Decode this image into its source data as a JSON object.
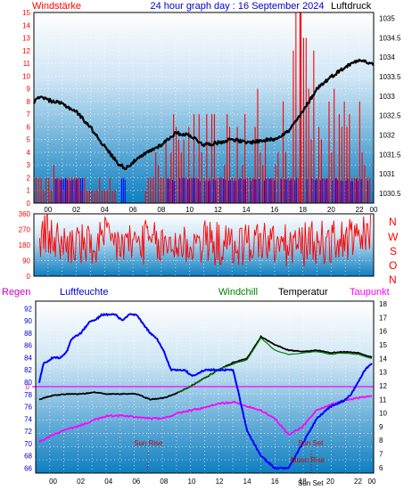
{
  "header": {
    "left_label": "Windstärke",
    "title": "24 hour graph day : 16 September 2024",
    "right_label": "Luftdruck"
  },
  "legend2": {
    "regen": "Regen",
    "luftfeuchte": "Luftfeuchte",
    "windchill": "Windchill",
    "temperatur": "Temperatur",
    "taupunkt": "Taupunkt"
  },
  "compass": [
    "N",
    "W",
    "S",
    "O",
    "N"
  ],
  "annotations": {
    "sun_rise": "Sun Rise",
    "sun_set": "Sun Set",
    "moon_rise": "Moon Rise",
    "sun_set_bottom": "Sun Set",
    "rain_zero": "0"
  },
  "colors": {
    "wind": "#ff0000",
    "gust_blue": "#0000ff",
    "pressure": "#000000",
    "humidity": "#0000ff",
    "temperature": "#000000",
    "dewpoint": "#ff00ff",
    "windchill": "#008000",
    "rain_line": "#ff00ff",
    "header_text": "#0000cc",
    "left_axis": "#ff0000",
    "plot_bg_top": "#ffffff",
    "plot_bg_bottom": "#0e7fc0"
  },
  "chart_data": [
    {
      "type": "line",
      "title": "24 hour graph day : 16 September 2024",
      "x_ticks": [
        "00",
        "02",
        "04",
        "06",
        "08",
        "10",
        "12",
        "14",
        "16",
        "18",
        "20",
        "22",
        "00"
      ],
      "y_left_label": "Windstärke",
      "y_left_ticks": [
        "0",
        "1",
        "2",
        "3",
        "4",
        "5",
        "6",
        "7",
        "8",
        "9",
        "10",
        "11",
        "12",
        "13",
        "14",
        "15"
      ],
      "ylim_left": [
        0,
        15
      ],
      "y_right_label": "Luftdruck",
      "y_right_ticks": [
        "1030.5",
        "1031",
        "1031.5",
        "1032",
        "1032.5",
        "1033",
        "1033.5",
        "1034",
        "1034.5",
        "1035"
      ],
      "ylim_right": [
        1030.25,
        1035.15
      ],
      "grid": true,
      "series": [
        {
          "name": "Windstärke",
          "x": [
            0,
            2,
            4,
            6,
            8,
            10,
            12,
            14,
            16,
            18,
            18.8,
            20,
            22,
            24
          ],
          "values": [
            2,
            2,
            1,
            1,
            2,
            5,
            6,
            7,
            7,
            8,
            15,
            8,
            7,
            5
          ]
        },
        {
          "name": "Luftdruck",
          "x": [
            0,
            0.5,
            1,
            2,
            3,
            4,
            5,
            6,
            6.5,
            7,
            8,
            9,
            10,
            11,
            12,
            13,
            14,
            15,
            16,
            17,
            18,
            19,
            20,
            21,
            22,
            23,
            24
          ],
          "values": [
            1032.85,
            1033.0,
            1032.9,
            1032.8,
            1032.6,
            1032.2,
            1031.7,
            1031.25,
            1031.15,
            1031.3,
            1031.55,
            1031.75,
            1032.05,
            1032.0,
            1031.75,
            1031.8,
            1031.9,
            1031.8,
            1031.85,
            1031.9,
            1032.1,
            1032.6,
            1033.2,
            1033.5,
            1033.75,
            1033.95,
            1033.8
          ]
        }
      ]
    },
    {
      "type": "scatter",
      "title": "",
      "x_ticks": [
        "00",
        "02",
        "04",
        "06",
        "08",
        "10",
        "12",
        "14",
        "16",
        "18",
        "20",
        "22",
        "00"
      ],
      "y_ticks": [
        "0",
        "90",
        "180",
        "270",
        "360"
      ],
      "ylim": [
        0,
        360
      ],
      "series": [
        {
          "name": "",
          "x": [
            0,
            1,
            2,
            3,
            4,
            5,
            6,
            7,
            8,
            9,
            10,
            11,
            12,
            13,
            14,
            15,
            16,
            17,
            18,
            19,
            20,
            21,
            22,
            23,
            24
          ],
          "values": [
            200,
            240,
            180,
            190,
            160,
            210,
            180,
            190,
            200,
            170,
            190,
            180,
            200,
            185,
            170,
            190,
            210,
            180,
            170,
            180,
            200,
            190,
            210,
            200,
            250
          ]
        }
      ]
    },
    {
      "type": "line",
      "title": "",
      "x_ticks": [
        "00",
        "02",
        "04",
        "06",
        "08",
        "10",
        "12",
        "14",
        "16",
        "18",
        "20",
        "22",
        "00"
      ],
      "y_left_ticks": [
        "66",
        "68",
        "70",
        "72",
        "74",
        "76",
        "78",
        "80",
        "82",
        "84",
        "86",
        "88",
        "90",
        "92"
      ],
      "ylim_left": [
        65.2,
        93.2
      ],
      "y_right_ticks": [
        "6",
        "7",
        "8",
        "9",
        "10",
        "11",
        "12",
        "13",
        "14",
        "15",
        "16",
        "17",
        "18"
      ],
      "ylim_right": [
        5.6,
        18.2
      ],
      "grid": true,
      "series": [
        {
          "name": "Luftfeuchte",
          "x": [
            0,
            0.3,
            1,
            1.5,
            2,
            2.3,
            3,
            3.7,
            4,
            4.5,
            5,
            5.5,
            6,
            6.5,
            7,
            8,
            8.5,
            9,
            9.5,
            10,
            10.5,
            11,
            12,
            12.5,
            13,
            13.5,
            14,
            14.5,
            15,
            15.5,
            16,
            16.5,
            17,
            17.5,
            18,
            18.5,
            19,
            20,
            21,
            22,
            22.5,
            23,
            23.5,
            24
          ],
          "values": [
            80,
            83,
            84,
            84,
            85,
            87,
            88,
            90,
            90,
            91,
            91,
            91,
            90,
            91,
            91,
            88,
            87,
            85,
            82,
            82,
            82,
            81,
            82,
            82,
            82,
            82,
            82,
            77,
            72,
            70,
            68,
            67,
            66,
            66,
            66,
            68,
            70,
            74,
            76,
            77,
            78,
            80,
            82,
            83
          ]
        },
        {
          "name": "Temperatur",
          "x": [
            0,
            1,
            2,
            3,
            4,
            5,
            6,
            7,
            8,
            9,
            10,
            11,
            12,
            13,
            14,
            15,
            16,
            17,
            18,
            19,
            20,
            21,
            22,
            23,
            24
          ],
          "values": [
            11.0,
            11.3,
            11.4,
            11.4,
            11.5,
            11.4,
            11.4,
            11.4,
            11.0,
            11.1,
            11.5,
            12.0,
            12.6,
            13.2,
            13.7,
            14.0,
            15.6,
            15.0,
            14.6,
            14.5,
            14.6,
            14.4,
            14.5,
            14.4,
            14.1
          ]
        },
        {
          "name": "Taupunkt",
          "x": [
            0,
            1,
            2,
            3,
            4,
            5,
            6,
            7,
            8,
            9,
            10,
            11,
            12,
            13,
            14,
            15,
            16,
            17,
            18,
            19,
            20,
            21,
            22,
            23,
            24
          ],
          "values": [
            7.9,
            8.4,
            8.8,
            9.1,
            9.5,
            9.8,
            9.8,
            9.7,
            9.6,
            9.6,
            10.0,
            10.2,
            10.4,
            10.7,
            10.8,
            10.5,
            10.2,
            9.6,
            8.4,
            9.0,
            10.2,
            10.6,
            10.9,
            11.1,
            11.3
          ]
        },
        {
          "name": "Windchill",
          "x": [
            10,
            11,
            12,
            13,
            14,
            15,
            16,
            17,
            18,
            19,
            20,
            21,
            22,
            23,
            24
          ],
          "values": [
            11.5,
            12.0,
            12.6,
            13.2,
            13.6,
            13.9,
            15.5,
            14.6,
            14.3,
            14.4,
            14.5,
            14.3,
            14.4,
            14.3,
            14.0
          ]
        }
      ]
    }
  ]
}
